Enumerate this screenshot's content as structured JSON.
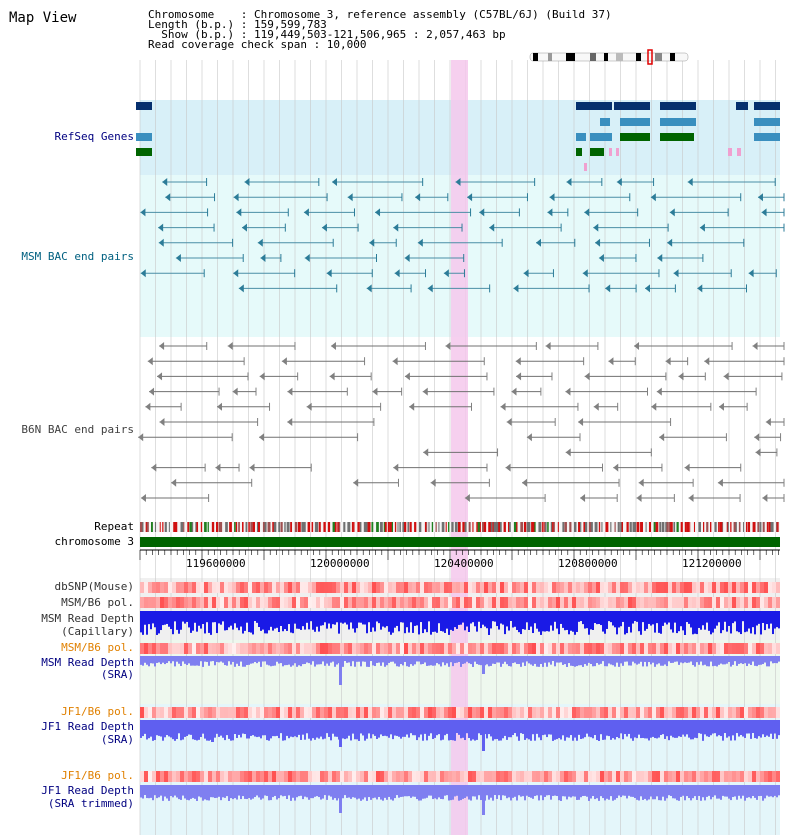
{
  "title": "Map View",
  "info": {
    "chromosome": "Chromosome    : Chromosome 3, reference assembly (C57BL/6J) (Build 37)",
    "length": "Length (b.p.) : 159,599,783",
    "show": "  Show (b.p.) : 119,449,503-121,506,965 : 2,057,463 bp",
    "coverage": "Read coverage check span : 10,000"
  },
  "tracks": {
    "refseq": "RefSeq Genes",
    "msm_bac": "MSM BAC end pairs",
    "b6n_bac": "B6N BAC end pairs",
    "repeat": "Repeat",
    "chromosome": "chromosome 3",
    "dbsnp": "dbSNP(Mouse)",
    "msm_b6_pol_1": "MSM/B6 pol.",
    "msm_depth_cap_1": "MSM Read Depth",
    "msm_depth_cap_2": "(Capillary)",
    "msm_b6_pol_2": "MSM/B6 pol.",
    "msm_depth_sra_1": "MSM Read Depth",
    "msm_depth_sra_2": "(SRA)",
    "jf1_b6_pol_1": "JF1/B6 pol.",
    "jf1_depth_sra_1": "JF1 Read Depth",
    "jf1_depth_sra_2": "(SRA)",
    "jf1_b6_pol_2": "JF1/B6 pol.",
    "jf1_depth_trim_1": "JF1 Read Depth",
    "jf1_depth_trim_2": "(SRA trimmed)"
  },
  "axis": {
    "ticks": [
      "119600000",
      "120000000",
      "120400000",
      "120800000",
      "121200000"
    ]
  },
  "colors": {
    "navy": "#000080",
    "msm_teal": "#006080",
    "orange": "#e08000",
    "highlight": "#f5c8ec",
    "chrom_green": "#006400",
    "depth_blue": "#1a1ae6",
    "depth_light": "#7f7ff0",
    "refseq_dark": "#06306e",
    "refseq_mid": "#3a8fbf",
    "refseq_green": "#006400"
  }
}
